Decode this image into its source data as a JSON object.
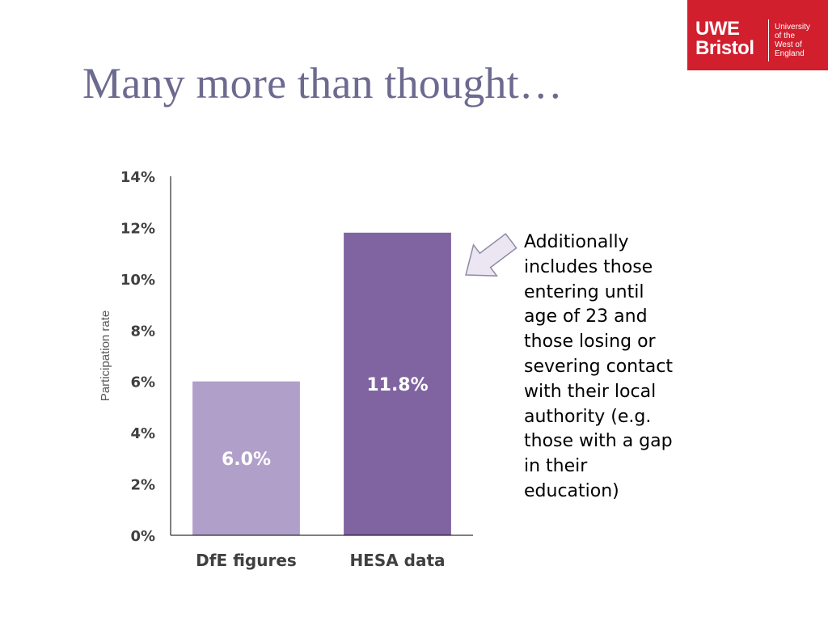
{
  "title": "Many more than thought…",
  "logo": {
    "wordmark_top": "UWE",
    "wordmark_bottom": "Bristol",
    "lines": [
      "University",
      "of the",
      "West of",
      "England"
    ],
    "color": "#d11f2e"
  },
  "callout": {
    "text": "Additionally includes those entering until age of 23 and those losing or severing contact with their local authority (e.g. those with a gap in their education)",
    "arrow_icon": "arrow-pointing-left-icon"
  },
  "chart_data": {
    "type": "bar",
    "categories": [
      "DfE figures",
      "HESA data"
    ],
    "values": [
      6.0,
      11.8
    ],
    "data_labels": [
      "6.0%",
      "11.8%"
    ],
    "colors": [
      "#b09fc9",
      "#8064a1"
    ],
    "ylabel": "Participation rate",
    "ylim": [
      0,
      14
    ],
    "yticks": [
      "0%",
      "2%",
      "4%",
      "6%",
      "8%",
      "10%",
      "12%",
      "14%"
    ],
    "grid": false
  }
}
